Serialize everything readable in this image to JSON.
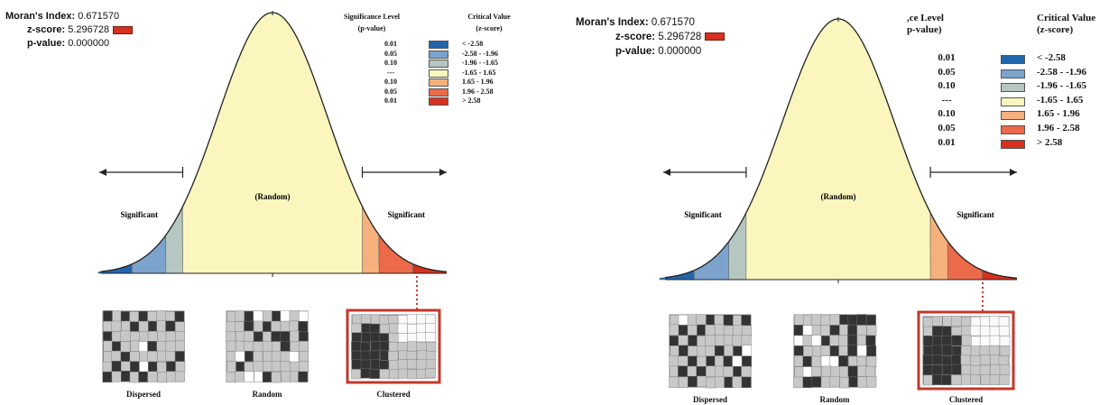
{
  "stats": {
    "moran_label": "Moran's Index:",
    "moran_value": "0.671570",
    "z_label": "z-score:",
    "z_value": "5.296728",
    "p_label": "p-value:",
    "p_value": "0.000000"
  },
  "legend_left": {
    "header_sig_line1": "Significance Level",
    "header_sig_line2": "(p-value)",
    "header_crit_line1": "Critical Value",
    "header_crit_line2": "(z-score)"
  },
  "legend_right": {
    "header_sig_line1": ",ce Level",
    "header_sig_line2": "p-value)",
    "header_crit_line1": "Critical Value",
    "header_crit_line2": "(z-score)"
  },
  "legend_rows": [
    {
      "sig": "0.01",
      "crit": "< -2.58",
      "color": "#2166ac"
    },
    {
      "sig": "0.05",
      "crit": "-2.58 - -1.96",
      "color": "#7ba3cc"
    },
    {
      "sig": "0.10",
      "crit": "-1.96 - -1.65",
      "color": "#b6c6c0"
    },
    {
      "sig": "---",
      "crit": "-1.65 - 1.65",
      "color": "#fbf6bd"
    },
    {
      "sig": "0.10",
      "crit": "1.65 - 1.96",
      "color": "#f6b07c"
    },
    {
      "sig": "0.05",
      "crit": "1.96 - 2.58",
      "color": "#ec6a49"
    },
    {
      "sig": "0.01",
      "crit": "> 2.58",
      "color": "#d7301f"
    }
  ],
  "curve": {
    "random_label": "(Random)",
    "significant_left": "Significant",
    "significant_right": "Significant"
  },
  "maps": {
    "dispersed": "Dispersed",
    "random": "Random",
    "clustered": "Clustered"
  }
}
